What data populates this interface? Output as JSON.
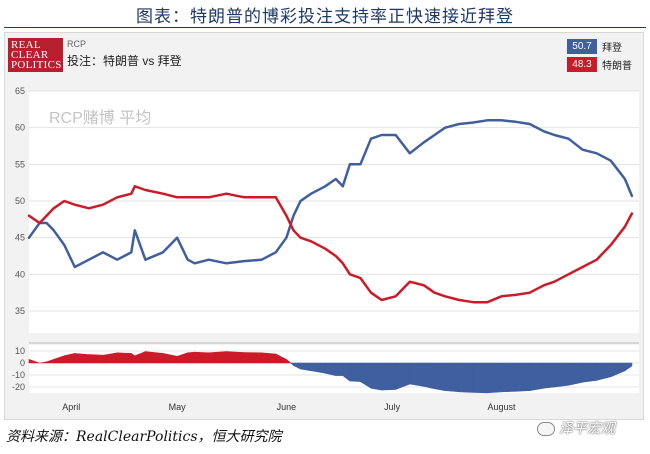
{
  "figure_title": "图表：特朗普的博彩投注支持率正快速接近拜登",
  "source_note": "资料来源：RealClearPolitics，恒大研究院",
  "watermark": "泽平宏观",
  "logo": {
    "line1": "REAL",
    "line2": "CLEAR",
    "line3": "POLITICS"
  },
  "header": {
    "source_tag": "RCP",
    "pair_title": "投注：特朗普 vs 拜登"
  },
  "legend": [
    {
      "value": "50.7",
      "name": "拜登",
      "color": "#3f5f9f"
    },
    {
      "value": "48.3",
      "name": "特朗普",
      "color": "#cc1b28"
    }
  ],
  "chart_data": [
    {
      "type": "line",
      "title": "RCP赌博 平均",
      "x": [
        "03/20",
        "03/23",
        "03/25",
        "03/27",
        "03/30",
        "04/02",
        "04/06",
        "04/10",
        "04/14",
        "04/18",
        "04/19",
        "04/22",
        "04/27",
        "05/01",
        "05/04",
        "05/06",
        "05/10",
        "05/15",
        "05/20",
        "05/25",
        "05/29",
        "06/01",
        "06/03",
        "06/05",
        "06/08",
        "06/12",
        "06/15",
        "06/17",
        "06/19",
        "06/22",
        "06/25",
        "06/28",
        "07/02",
        "07/06",
        "07/10",
        "07/13",
        "07/16",
        "07/20",
        "07/24",
        "07/28",
        "08/01",
        "08/05",
        "08/09",
        "08/13",
        "08/16",
        "08/20",
        "08/24",
        "08/28",
        "09/01",
        "09/05",
        "09/07"
      ],
      "x_tick_labels": [
        "April",
        "May",
        "June",
        "July",
        "August"
      ],
      "x_tick_positions": [
        "04/01",
        "05/01",
        "06/01",
        "07/01",
        "08/01"
      ],
      "ylim": [
        32,
        65
      ],
      "y_ticks": [
        35,
        40,
        45,
        50,
        55,
        60,
        65
      ],
      "series": [
        {
          "name": "拜登",
          "color": "#3f5f9f",
          "values": [
            45,
            47,
            47,
            46,
            44,
            41,
            42,
            43,
            42,
            43,
            46,
            42,
            43,
            45,
            42,
            41.5,
            42,
            41.5,
            41.8,
            42,
            43,
            45,
            48,
            50,
            51,
            52,
            53,
            52,
            55,
            55,
            58.5,
            59,
            59,
            56.5,
            58,
            59,
            60,
            60.5,
            60.7,
            61,
            61,
            60.8,
            60.5,
            59.5,
            59,
            58.5,
            57,
            56.5,
            55.5,
            53,
            50.7
          ]
        },
        {
          "name": "特朗普",
          "color": "#cc1b28",
          "values": [
            48,
            47,
            48,
            49,
            50,
            49.5,
            49,
            49.5,
            50.5,
            51,
            52,
            51.5,
            51,
            50.5,
            50.5,
            50.5,
            50.5,
            51,
            50.5,
            50.5,
            50.5,
            48,
            46,
            45,
            44.5,
            43.5,
            42.5,
            41.5,
            40,
            39.5,
            37.5,
            36.5,
            37,
            39,
            38.5,
            37.5,
            37,
            36.5,
            36.2,
            36.2,
            37,
            37.2,
            37.5,
            38.5,
            39,
            40,
            41,
            42,
            44,
            46.5,
            48.3
          ]
        }
      ]
    },
    {
      "type": "area",
      "title": "",
      "x": [
        "03/20",
        "03/23",
        "03/25",
        "03/27",
        "03/30",
        "04/02",
        "04/06",
        "04/10",
        "04/14",
        "04/18",
        "04/19",
        "04/22",
        "04/27",
        "05/01",
        "05/04",
        "05/06",
        "05/10",
        "05/15",
        "05/20",
        "05/25",
        "05/29",
        "06/01",
        "06/03",
        "06/05",
        "06/08",
        "06/12",
        "06/15",
        "06/17",
        "06/19",
        "06/22",
        "06/25",
        "06/28",
        "07/02",
        "07/06",
        "07/10",
        "07/13",
        "07/16",
        "07/20",
        "07/24",
        "07/28",
        "08/01",
        "08/05",
        "08/09",
        "08/13",
        "08/16",
        "08/20",
        "08/24",
        "08/28",
        "09/01",
        "09/05",
        "09/07"
      ],
      "ylim": [
        -25,
        15
      ],
      "y_ticks": [
        10,
        0,
        -10,
        -20
      ],
      "series": [
        {
          "name": "",
          "values": [
            3,
            0,
            1,
            3,
            6,
            8,
            7,
            6.5,
            8.5,
            8,
            6,
            9.5,
            8,
            5.5,
            8.5,
            9,
            8.5,
            9.5,
            8.7,
            8.5,
            7.5,
            3,
            -2,
            -5,
            -6.5,
            -8.5,
            -10.5,
            -10.5,
            -15,
            -15.5,
            -21,
            -22.5,
            -22,
            -17.5,
            -19.5,
            -21.5,
            -23,
            -24,
            -24.5,
            -24.8,
            -24,
            -23.6,
            -23,
            -21,
            -20,
            -18.5,
            -16,
            -14.5,
            -11.5,
            -6.5,
            -2.4
          ]
        }
      ]
    }
  ]
}
